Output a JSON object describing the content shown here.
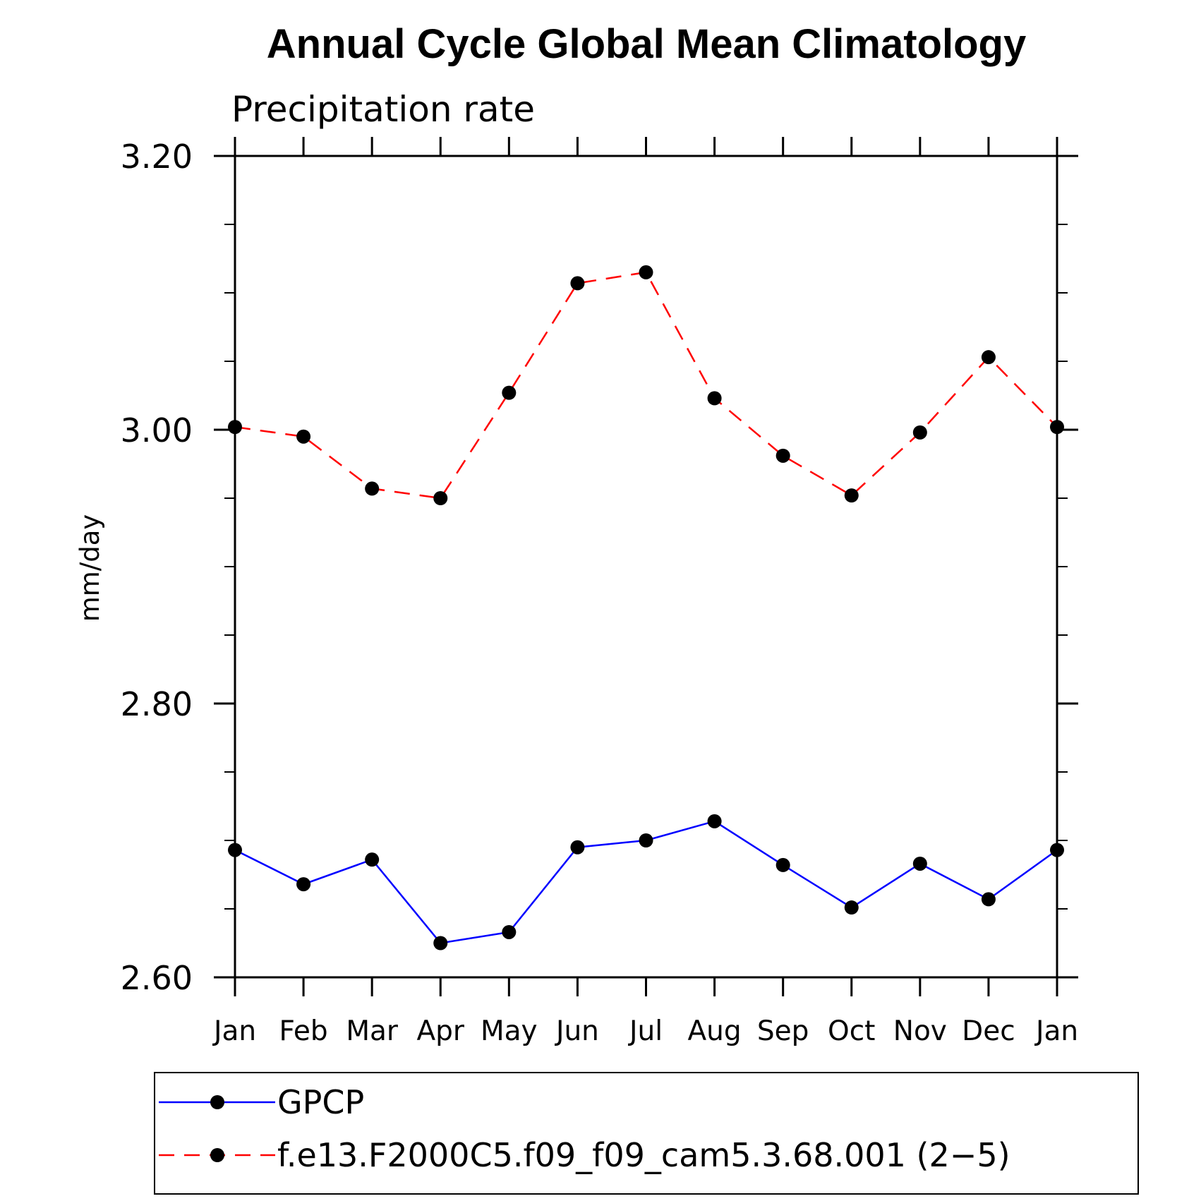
{
  "chart_data": {
    "type": "line",
    "title": "Annual Cycle Global Mean Climatology",
    "subtitle": "Precipitation rate",
    "xlabel": "",
    "ylabel": "mm/day",
    "categories": [
      "Jan",
      "Feb",
      "Mar",
      "Apr",
      "May",
      "Jun",
      "Jul",
      "Aug",
      "Sep",
      "Oct",
      "Nov",
      "Dec",
      "Jan"
    ],
    "ylim": [
      2.6,
      3.2
    ],
    "yticks": [
      "2.60",
      "2.80",
      "3.00",
      "3.20"
    ],
    "yminor_step": 0.05,
    "grid": false,
    "legend_position": "bottom",
    "series": [
      {
        "name": "GPCP",
        "color": "#0000ff",
        "dash": "solid",
        "values": [
          2.693,
          2.668,
          2.686,
          2.625,
          2.633,
          2.695,
          2.7,
          2.714,
          2.682,
          2.651,
          2.683,
          2.657,
          2.693
        ]
      },
      {
        "name": "f.e13.F2000C5.f09_f09_cam5.3.68.001 (2−5)",
        "color": "#ff0000",
        "dash": "dashed",
        "values": [
          3.002,
          2.995,
          2.957,
          2.95,
          3.027,
          3.107,
          3.115,
          3.023,
          2.981,
          2.952,
          2.998,
          3.053,
          3.002
        ]
      }
    ]
  }
}
